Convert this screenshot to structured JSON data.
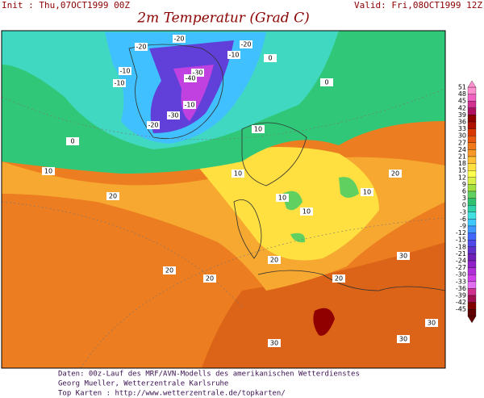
{
  "header": {
    "init": "Init : Thu,07OCT1999 00Z",
    "valid": "Valid: Fri,08OCT1999 12Z",
    "title": "2m Temperatur (Grad C)"
  },
  "legend": {
    "labels": [
      51,
      48,
      45,
      42,
      39,
      36,
      33,
      30,
      27,
      24,
      21,
      18,
      15,
      12,
      9,
      6,
      3,
      0,
      -3,
      -6,
      -9,
      -12,
      -15,
      -18,
      -21,
      -24,
      -27,
      -30,
      -33,
      -36,
      -39,
      -42,
      -45
    ],
    "colors": [
      "#ff90d0",
      "#f060c0",
      "#d03090",
      "#b01060",
      "#900000",
      "#b01000",
      "#d83800",
      "#e85810",
      "#f07818",
      "#f89828",
      "#ffc038",
      "#ffe040",
      "#ffff50",
      "#d8f048",
      "#a0e040",
      "#60d060",
      "#30c070",
      "#30d0a8",
      "#40e0e0",
      "#40c8ff",
      "#4098ff",
      "#4068ff",
      "#5048e8",
      "#6030c8",
      "#7020b8",
      "#9020c8",
      "#b030d8",
      "#d040e8",
      "#e070f0",
      "#d03090",
      "#a01050",
      "#800000",
      "#600000"
    ]
  },
  "map": {
    "contour_labels": [
      -20,
      -20,
      -10,
      -10,
      -30,
      -40,
      -30,
      -20,
      -10,
      0,
      0,
      10,
      10,
      10,
      10,
      10,
      20,
      20,
      20,
      20,
      20,
      30,
      30,
      30,
      30,
      20,
      10,
      0,
      -10,
      -20
    ]
  },
  "footer": {
    "lines": [
      "Daten: 00z-Lauf des MRF/AVN-Modells des amerikanischen Wetterdienstes",
      "Georg Mueller, Wetterzentrale Karlsruhe",
      "Top Karten :  http://www.wetterzentrale.de/topkarten/"
    ]
  }
}
